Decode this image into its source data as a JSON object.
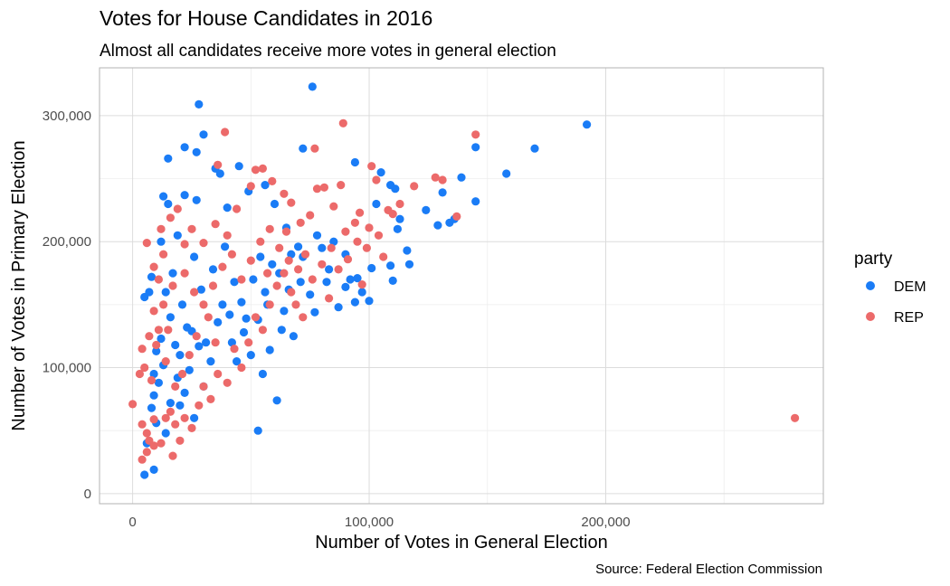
{
  "chart_data": {
    "type": "scatter",
    "title": "Votes for House Candidates in 2016",
    "subtitle": "Almost all candidates receive more votes in general election",
    "xlabel": "Number of Votes in General Election",
    "ylabel": "Number of Votes in Primary Election",
    "caption": "Source: Federal Election Commission",
    "xlim": [
      -14000,
      292000
    ],
    "ylim": [
      -8000,
      338000
    ],
    "x_ticks": [
      0,
      100000,
      200000
    ],
    "x_tick_labels": [
      "0",
      "100,000",
      "200,000"
    ],
    "y_ticks": [
      0,
      100000,
      200000,
      300000
    ],
    "y_tick_labels": [
      "0",
      "100,000",
      "200,000",
      "300,000"
    ],
    "grid": true,
    "legend": {
      "title": "party",
      "placement": "right",
      "entries": [
        {
          "label": "DEM",
          "color": "#1a7cf6"
        },
        {
          "label": "REP",
          "color": "#ec6a6a"
        }
      ]
    },
    "series": [
      {
        "name": "DEM",
        "color": "#1a7cf6",
        "points": [
          [
            28000,
            309000
          ],
          [
            76000,
            323000
          ],
          [
            30000,
            285000
          ],
          [
            22000,
            275000
          ],
          [
            27000,
            271000
          ],
          [
            192000,
            293000
          ],
          [
            170000,
            274000
          ],
          [
            158000,
            254000
          ],
          [
            145000,
            275000
          ],
          [
            139000,
            251000
          ],
          [
            145000,
            232000
          ],
          [
            124000,
            225000
          ],
          [
            129000,
            213000
          ],
          [
            131000,
            239000
          ],
          [
            134000,
            215000
          ],
          [
            136000,
            218000
          ],
          [
            105000,
            255000
          ],
          [
            109000,
            245000
          ],
          [
            111000,
            242000
          ],
          [
            103000,
            230000
          ],
          [
            113000,
            218000
          ],
          [
            112000,
            210000
          ],
          [
            116000,
            193000
          ],
          [
            117000,
            182000
          ],
          [
            109000,
            181000
          ],
          [
            110000,
            169000
          ],
          [
            101000,
            179000
          ],
          [
            94000,
            263000
          ],
          [
            72000,
            274000
          ],
          [
            45000,
            260000
          ],
          [
            35000,
            258000
          ],
          [
            37000,
            254000
          ],
          [
            56000,
            245000
          ],
          [
            49000,
            240000
          ],
          [
            15000,
            266000
          ],
          [
            13000,
            236000
          ],
          [
            15000,
            230000
          ],
          [
            22000,
            237000
          ],
          [
            12000,
            200000
          ],
          [
            19000,
            205000
          ],
          [
            27000,
            233000
          ],
          [
            40000,
            227000
          ],
          [
            60000,
            230000
          ],
          [
            65000,
            211000
          ],
          [
            70000,
            196000
          ],
          [
            80000,
            195000
          ],
          [
            85000,
            200000
          ],
          [
            90000,
            190000
          ],
          [
            95000,
            171000
          ],
          [
            100000,
            153000
          ],
          [
            90000,
            164000
          ],
          [
            94000,
            152000
          ],
          [
            82000,
            168000
          ],
          [
            77000,
            144000
          ],
          [
            75000,
            158000
          ],
          [
            63000,
            130000
          ],
          [
            58000,
            114000
          ],
          [
            55000,
            95000
          ],
          [
            53000,
            50000
          ],
          [
            61000,
            74000
          ],
          [
            48000,
            139000
          ],
          [
            42000,
            120000
          ],
          [
            38000,
            150000
          ],
          [
            33000,
            105000
          ],
          [
            30000,
            85000
          ],
          [
            28000,
            117000
          ],
          [
            25000,
            129000
          ],
          [
            24000,
            98000
          ],
          [
            20000,
            110000
          ],
          [
            19000,
            92000
          ],
          [
            16000,
            140000
          ],
          [
            14000,
            160000
          ],
          [
            12000,
            123000
          ],
          [
            10000,
            113000
          ],
          [
            9000,
            95000
          ],
          [
            8000,
            172000
          ],
          [
            7000,
            160000
          ],
          [
            5000,
            156000
          ],
          [
            8000,
            68000
          ],
          [
            9000,
            78000
          ],
          [
            10000,
            56000
          ],
          [
            14000,
            48000
          ],
          [
            6000,
            40000
          ],
          [
            5000,
            15000
          ],
          [
            9000,
            19000
          ],
          [
            20000,
            70000
          ],
          [
            22000,
            80000
          ],
          [
            26000,
            60000
          ],
          [
            31000,
            120000
          ],
          [
            36000,
            136000
          ],
          [
            41000,
            142000
          ],
          [
            44000,
            105000
          ],
          [
            47000,
            128000
          ],
          [
            51000,
            170000
          ],
          [
            54000,
            188000
          ],
          [
            57000,
            150000
          ],
          [
            62000,
            175000
          ],
          [
            66000,
            162000
          ],
          [
            68000,
            125000
          ],
          [
            72000,
            188000
          ],
          [
            78000,
            205000
          ],
          [
            83000,
            178000
          ],
          [
            87000,
            148000
          ],
          [
            92000,
            170000
          ],
          [
            97000,
            160000
          ],
          [
            17000,
            175000
          ],
          [
            21000,
            150000
          ],
          [
            23000,
            132000
          ],
          [
            18000,
            118000
          ],
          [
            13000,
            102000
          ],
          [
            11000,
            88000
          ],
          [
            16000,
            72000
          ],
          [
            26000,
            188000
          ],
          [
            29000,
            162000
          ],
          [
            34000,
            178000
          ],
          [
            39000,
            196000
          ],
          [
            43000,
            168000
          ],
          [
            46000,
            152000
          ],
          [
            50000,
            110000
          ],
          [
            53000,
            138000
          ],
          [
            56000,
            160000
          ],
          [
            59000,
            182000
          ],
          [
            64000,
            145000
          ],
          [
            67000,
            190000
          ],
          [
            71000,
            168000
          ]
        ]
      },
      {
        "name": "REP",
        "color": "#ec6a6a",
        "points": [
          [
            39000,
            287000
          ],
          [
            89000,
            294000
          ],
          [
            77000,
            274000
          ],
          [
            145000,
            285000
          ],
          [
            128000,
            251000
          ],
          [
            131000,
            249000
          ],
          [
            137000,
            220000
          ],
          [
            119000,
            244000
          ],
          [
            101000,
            260000
          ],
          [
            103000,
            249000
          ],
          [
            36000,
            261000
          ],
          [
            52000,
            257000
          ],
          [
            55000,
            258000
          ],
          [
            50000,
            244000
          ],
          [
            59000,
            248000
          ],
          [
            64000,
            238000
          ],
          [
            67000,
            231000
          ],
          [
            78000,
            242000
          ],
          [
            81000,
            243000
          ],
          [
            88000,
            245000
          ],
          [
            85000,
            228000
          ],
          [
            96000,
            223000
          ],
          [
            100000,
            211000
          ],
          [
            108000,
            225000
          ],
          [
            90000,
            208000
          ],
          [
            94000,
            215000
          ],
          [
            75000,
            221000
          ],
          [
            71000,
            215000
          ],
          [
            65000,
            208000
          ],
          [
            58000,
            210000
          ],
          [
            44000,
            226000
          ],
          [
            40000,
            205000
          ],
          [
            35000,
            214000
          ],
          [
            30000,
            199000
          ],
          [
            25000,
            210000
          ],
          [
            22000,
            198000
          ],
          [
            19000,
            226000
          ],
          [
            16000,
            219000
          ],
          [
            12000,
            210000
          ],
          [
            6000,
            199000
          ],
          [
            9000,
            180000
          ],
          [
            11000,
            170000
          ],
          [
            13000,
            150000
          ],
          [
            15000,
            130000
          ],
          [
            10000,
            118000
          ],
          [
            7000,
            125000
          ],
          [
            4000,
            115000
          ],
          [
            5000,
            100000
          ],
          [
            3000,
            95000
          ],
          [
            8000,
            90000
          ],
          [
            0,
            71000
          ],
          [
            4000,
            55000
          ],
          [
            6000,
            48000
          ],
          [
            7000,
            42000
          ],
          [
            4000,
            27000
          ],
          [
            6000,
            33000
          ],
          [
            9000,
            38000
          ],
          [
            12000,
            40000
          ],
          [
            14000,
            60000
          ],
          [
            16000,
            65000
          ],
          [
            18000,
            55000
          ],
          [
            20000,
            42000
          ],
          [
            17000,
            30000
          ],
          [
            22000,
            60000
          ],
          [
            25000,
            52000
          ],
          [
            28000,
            70000
          ],
          [
            30000,
            85000
          ],
          [
            33000,
            75000
          ],
          [
            36000,
            95000
          ],
          [
            40000,
            88000
          ],
          [
            43000,
            115000
          ],
          [
            46000,
            100000
          ],
          [
            49000,
            120000
          ],
          [
            52000,
            140000
          ],
          [
            55000,
            130000
          ],
          [
            58000,
            150000
          ],
          [
            61000,
            165000
          ],
          [
            64000,
            175000
          ],
          [
            67000,
            160000
          ],
          [
            70000,
            178000
          ],
          [
            73000,
            190000
          ],
          [
            76000,
            170000
          ],
          [
            80000,
            182000
          ],
          [
            84000,
            195000
          ],
          [
            87000,
            178000
          ],
          [
            91000,
            186000
          ],
          [
            95000,
            200000
          ],
          [
            99000,
            195000
          ],
          [
            104000,
            205000
          ],
          [
            35000,
            120000
          ],
          [
            32000,
            140000
          ],
          [
            27000,
            125000
          ],
          [
            24000,
            110000
          ],
          [
            21000,
            95000
          ],
          [
            18000,
            85000
          ],
          [
            14000,
            105000
          ],
          [
            11000,
            130000
          ],
          [
            9000,
            145000
          ],
          [
            13000,
            190000
          ],
          [
            17000,
            165000
          ],
          [
            22000,
            175000
          ],
          [
            26000,
            160000
          ],
          [
            30000,
            150000
          ],
          [
            34000,
            165000
          ],
          [
            38000,
            180000
          ],
          [
            42000,
            190000
          ],
          [
            46000,
            170000
          ],
          [
            50000,
            185000
          ],
          [
            54000,
            200000
          ],
          [
            57000,
            175000
          ],
          [
            62000,
            195000
          ],
          [
            66000,
            185000
          ],
          [
            69000,
            150000
          ],
          [
            72000,
            140000
          ],
          [
            83000,
            155000
          ],
          [
            97000,
            166000
          ],
          [
            106000,
            188000
          ],
          [
            110000,
            222000
          ],
          [
            113000,
            230000
          ],
          [
            9000,
            59000
          ],
          [
            280000,
            60000
          ]
        ]
      }
    ]
  }
}
